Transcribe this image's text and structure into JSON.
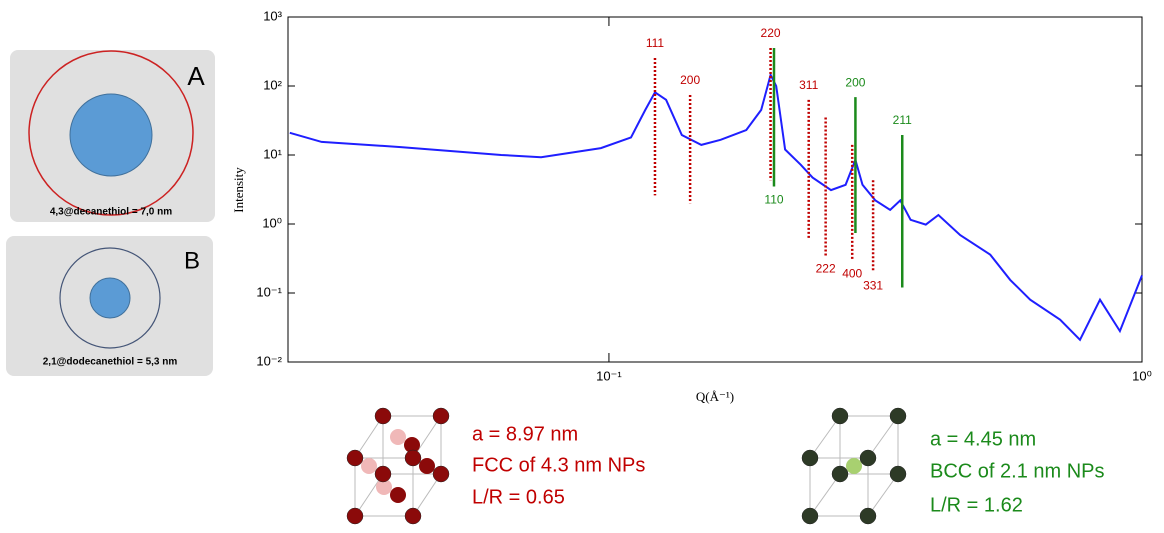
{
  "panels": [
    {
      "letter": "A",
      "caption": "4,3@decanethiol = 7,0 nm"
    },
    {
      "letter": "B",
      "caption": "2,1@dodecanethiol = 5,3 nm"
    }
  ],
  "chart_data": {
    "type": "line",
    "log_x": true,
    "log_y": true,
    "x_label": "Q(Å⁻¹)",
    "y_label": "Intensity",
    "color": "#1f1fff",
    "xlim": [
      0.025,
      1
    ],
    "ylim": [
      0.01,
      1000
    ],
    "xticks": [
      {
        "value": 0.1,
        "label": "10⁻¹"
      },
      {
        "value": 1,
        "label": "10⁰"
      }
    ],
    "yticks": [
      {
        "value": 0.01,
        "label": "10⁻²"
      },
      {
        "value": 0.1,
        "label": "10⁻¹"
      },
      {
        "value": 1,
        "label": "10⁰"
      },
      {
        "value": 10,
        "label": "10¹"
      },
      {
        "value": 100,
        "label": "10²"
      },
      {
        "value": 1000,
        "label": "10³"
      }
    ],
    "x": [
      0.0252,
      0.0289,
      0.0407,
      0.0628,
      0.0746,
      0.0966,
      0.11,
      0.117,
      0.122,
      0.128,
      0.137,
      0.149,
      0.162,
      0.181,
      0.193,
      0.201,
      0.206,
      0.214,
      0.229,
      0.241,
      0.261,
      0.278,
      0.29,
      0.299,
      0.316,
      0.337,
      0.352,
      0.368,
      0.393,
      0.415,
      0.456,
      0.519,
      0.566,
      0.617,
      0.702,
      0.765,
      0.834,
      0.909,
      1.0
    ],
    "values": [
      21,
      15.5,
      13,
      10,
      9.3,
      12.6,
      18,
      45,
      81,
      63,
      19.5,
      14,
      16.6,
      23,
      45,
      145,
      100,
      12,
      7.2,
      4.7,
      3.1,
      3.7,
      8.5,
      3.7,
      2.2,
      1.6,
      2.2,
      1.15,
      0.98,
      1.35,
      0.69,
      0.36,
      0.155,
      0.08,
      0.041,
      0.021,
      0.08,
      0.028,
      0.18
    ],
    "reflections": [
      {
        "label": "111",
        "x": 0.122,
        "range": [
          2.6,
          255
        ],
        "color": "#c00000",
        "style": "dotted",
        "label_at": "top"
      },
      {
        "label": "200",
        "x": 0.142,
        "range": [
          2.0,
          74
        ],
        "color": "#c00000",
        "style": "dotted",
        "label_at": "top"
      },
      {
        "label": "220",
        "x": 0.201,
        "range": [
          4.3,
          355
        ],
        "color": "#c00000",
        "style": "dotted",
        "label_at": "top"
      },
      {
        "label": "311",
        "x": 0.237,
        "range": [
          0.63,
          63
        ],
        "color": "#c00000",
        "style": "dotted",
        "label_at": "top"
      },
      {
        "label": "222",
        "x": 0.255,
        "range": [
          0.35,
          35
        ],
        "color": "#c00000",
        "style": "dotted",
        "label_at": "bottom"
      },
      {
        "label": "400",
        "x": 0.286,
        "range": [
          0.3,
          14
        ],
        "color": "#c00000",
        "style": "dotted",
        "label_at": "bottom"
      },
      {
        "label": "331",
        "x": 0.313,
        "range": [
          0.2,
          4.3
        ],
        "color": "#c00000",
        "style": "dotted",
        "label_at": "bottom"
      },
      {
        "label": "110",
        "x": 0.204,
        "range": [
          3.5,
          355
        ],
        "color": "#1b8a1b",
        "style": "solid",
        "label_at": "bottom"
      },
      {
        "label": "200",
        "x": 0.29,
        "range": [
          0.74,
          69
        ],
        "color": "#1b8a1b",
        "style": "solid",
        "label_at": "top"
      },
      {
        "label": "211",
        "x": 0.355,
        "range": [
          0.12,
          19.5
        ],
        "color": "#1b8a1b",
        "style": "solid",
        "label_at": "top"
      }
    ]
  },
  "lattices": [
    {
      "lines": [
        "a = 8.97 nm",
        "FCC of 4.3 nm NPs",
        "L/R = 0.65"
      ],
      "color": "#c00000"
    },
    {
      "lines": [
        "a = 4.45 nm",
        "BCC of 2.1 nm NPs",
        "L/R = 1.62"
      ],
      "color": "#1b8a1b"
    }
  ]
}
